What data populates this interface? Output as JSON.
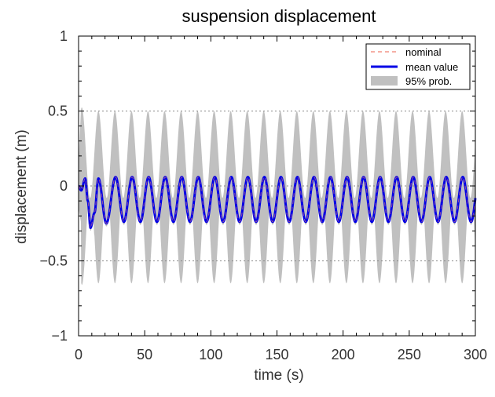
{
  "chart_data": {
    "type": "line",
    "title": "suspension displacement",
    "xlabel": "time (s)",
    "ylabel": "displacement (m)",
    "xlim": [
      0,
      300
    ],
    "ylim": [
      -1,
      1
    ],
    "xticks": [
      0,
      50,
      100,
      150,
      200,
      250,
      300
    ],
    "xtick_labels": [
      "0",
      "50",
      "100",
      "150",
      "200",
      "250",
      "300"
    ],
    "yticks": [
      -1,
      -0.5,
      0,
      0.5,
      1
    ],
    "ytick_labels": [
      "−1",
      "−0.5",
      "0",
      "0.5",
      "1"
    ],
    "grid": "horizontal dotted at y ticks",
    "legend_position": "top-right",
    "legend": [
      {
        "label": "nominal",
        "style": "dashed",
        "color": "#f08070"
      },
      {
        "label": "mean value",
        "style": "solid",
        "color": "#0000e6"
      },
      {
        "label": "95% prob.",
        "style": "band",
        "color": "#c0c0c0"
      }
    ],
    "series": [
      {
        "name": "mean value",
        "kind": "line",
        "period": 12.5,
        "steady_upper": 0.06,
        "steady_lower": -0.24,
        "first_minimum": -0.28,
        "points": [
          [
            0,
            0
          ],
          [
            2,
            -0.03
          ],
          [
            5,
            0.05
          ],
          [
            7,
            -0.1
          ],
          [
            9,
            -0.28
          ],
          [
            12,
            -0.18
          ],
          [
            15,
            0.05
          ],
          [
            21,
            -0.25
          ],
          [
            28,
            0.06
          ],
          [
            34,
            -0.24
          ],
          [
            40,
            0.06
          ],
          [
            300,
            0.06
          ]
        ]
      },
      {
        "name": "95% prob.",
        "kind": "band",
        "upper_peak": 0.5,
        "upper_valley": -0.08,
        "lower_valley": -0.65,
        "lower_peak": 0.03,
        "first_upper_peak": 0.54,
        "first_lower_valley": -0.73
      },
      {
        "name": "nominal",
        "kind": "dashed_line",
        "values": "overlaps mean value"
      }
    ]
  }
}
